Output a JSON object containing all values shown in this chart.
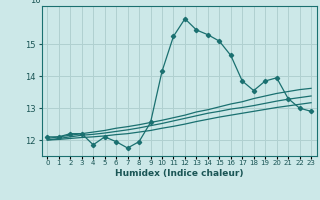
{
  "title": "",
  "xlabel": "Humidex (Indice chaleur)",
  "ylabel": "",
  "bg_color": "#cce8e8",
  "line_color": "#1a7070",
  "grid_color": "#b0d0d0",
  "x_data": [
    0,
    1,
    2,
    3,
    4,
    5,
    6,
    7,
    8,
    9,
    10,
    11,
    12,
    13,
    14,
    15,
    16,
    17,
    18,
    19,
    20,
    21,
    22,
    23
  ],
  "y_main": [
    12.1,
    12.1,
    12.2,
    12.2,
    11.85,
    12.1,
    11.95,
    11.75,
    11.95,
    12.55,
    14.15,
    15.25,
    15.8,
    15.45,
    15.3,
    15.1,
    14.65,
    13.85,
    13.55,
    13.85,
    13.95,
    13.3,
    13.0,
    12.9
  ],
  "y_trend1": [
    12.05,
    12.1,
    12.15,
    12.2,
    12.25,
    12.3,
    12.37,
    12.42,
    12.48,
    12.55,
    12.62,
    12.7,
    12.78,
    12.88,
    12.95,
    13.04,
    13.13,
    13.2,
    13.3,
    13.38,
    13.46,
    13.52,
    13.58,
    13.62
  ],
  "y_trend2": [
    12.0,
    12.05,
    12.1,
    12.15,
    12.18,
    12.22,
    12.27,
    12.32,
    12.38,
    12.45,
    12.52,
    12.6,
    12.68,
    12.76,
    12.84,
    12.9,
    12.97,
    13.02,
    13.08,
    13.15,
    13.22,
    13.28,
    13.33,
    13.38
  ],
  "y_trend3": [
    12.0,
    12.02,
    12.05,
    12.08,
    12.1,
    12.13,
    12.17,
    12.2,
    12.25,
    12.3,
    12.37,
    12.43,
    12.5,
    12.58,
    12.65,
    12.72,
    12.78,
    12.84,
    12.9,
    12.96,
    13.02,
    13.07,
    13.12,
    13.17
  ],
  "ylim": [
    11.5,
    16.2
  ],
  "yticks": [
    12,
    13,
    14,
    15
  ],
  "xlim": [
    -0.5,
    23.5
  ],
  "xtick_labels": [
    "0",
    "1",
    "2",
    "3",
    "4",
    "5",
    "6",
    "7",
    "8",
    "9",
    "10",
    "11",
    "12",
    "13",
    "14",
    "15",
    "16",
    "17",
    "18",
    "19",
    "20",
    "21",
    "22",
    "23"
  ]
}
